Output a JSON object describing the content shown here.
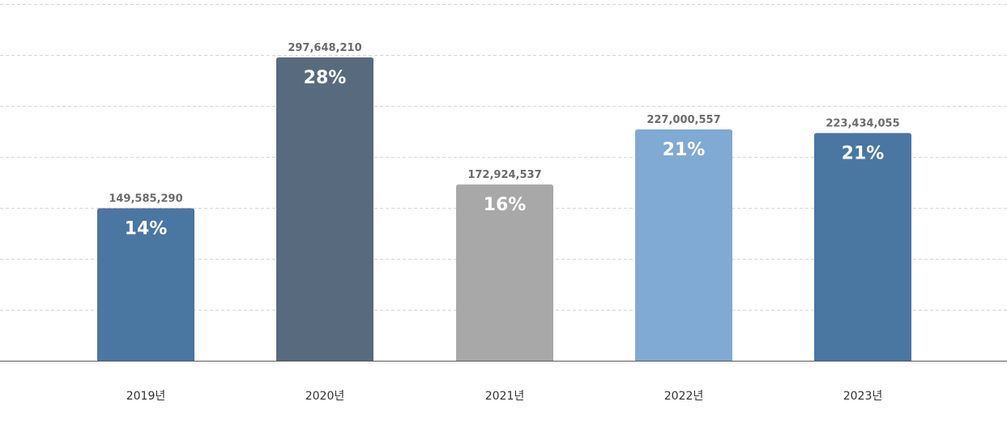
{
  "chart_data": {
    "type": "bar",
    "categories": [
      "2019년",
      "2020년",
      "2021년",
      "2022년",
      "2023년"
    ],
    "values": [
      149585290,
      297648210,
      172924537,
      227000557,
      223434055
    ],
    "value_labels": [
      "149,585,290",
      "297,648,210",
      "172,924,537",
      "227,000,557",
      "223,434,055"
    ],
    "percent_labels": [
      "14%",
      "28%",
      "16%",
      "21%",
      "21%"
    ],
    "colors": [
      "#4a76a2",
      "#586a7d",
      "#a8a8a8",
      "#80aad3",
      "#4a76a2"
    ],
    "ylim": [
      0,
      350000000
    ],
    "grid": true,
    "legend": "none",
    "title": "",
    "xlabel": "",
    "ylabel": ""
  }
}
